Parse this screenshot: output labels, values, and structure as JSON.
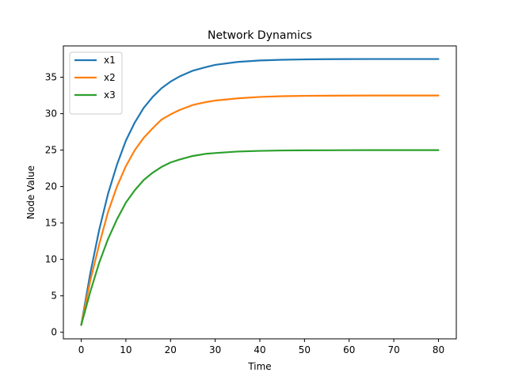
{
  "chart_data": {
    "type": "line",
    "title": "Network Dynamics",
    "xlabel": "Time",
    "ylabel": "Node Value",
    "xlim": [
      -4,
      84
    ],
    "ylim": [
      -0.9,
      39.3
    ],
    "xticks": [
      0,
      10,
      20,
      30,
      40,
      50,
      60,
      70,
      80
    ],
    "yticks": [
      0,
      5,
      10,
      15,
      20,
      25,
      30,
      35
    ],
    "grid": false,
    "legend_position": "top-left",
    "x": [
      0,
      2,
      4,
      6,
      8,
      10,
      12,
      14,
      16,
      18,
      20,
      22,
      25,
      28,
      30,
      35,
      40,
      45,
      50,
      55,
      60,
      65,
      70,
      75,
      80
    ],
    "series": [
      {
        "name": "x1",
        "color": "#1f77b4",
        "values": [
          1.0,
          8.0,
          14.0,
          19.0,
          23.0,
          26.3,
          28.8,
          30.8,
          32.3,
          33.5,
          34.4,
          35.1,
          35.9,
          36.4,
          36.7,
          37.1,
          37.3,
          37.4,
          37.45,
          37.48,
          37.49,
          37.5,
          37.5,
          37.5,
          37.5
        ]
      },
      {
        "name": "x2",
        "color": "#ff7f0e",
        "values": [
          1.0,
          7.0,
          12.0,
          16.5,
          20.0,
          22.8,
          25.0,
          26.7,
          28.0,
          29.2,
          29.9,
          30.5,
          31.2,
          31.6,
          31.8,
          32.1,
          32.3,
          32.4,
          32.45,
          32.47,
          32.48,
          32.5,
          32.5,
          32.5,
          32.5
        ]
      },
      {
        "name": "x3",
        "color": "#2ca02c",
        "values": [
          1.0,
          5.5,
          9.5,
          12.8,
          15.5,
          17.8,
          19.5,
          20.9,
          21.9,
          22.7,
          23.3,
          23.7,
          24.2,
          24.5,
          24.6,
          24.8,
          24.9,
          24.95,
          24.97,
          24.98,
          24.99,
          25.0,
          25.0,
          25.0,
          25.0
        ]
      }
    ]
  }
}
